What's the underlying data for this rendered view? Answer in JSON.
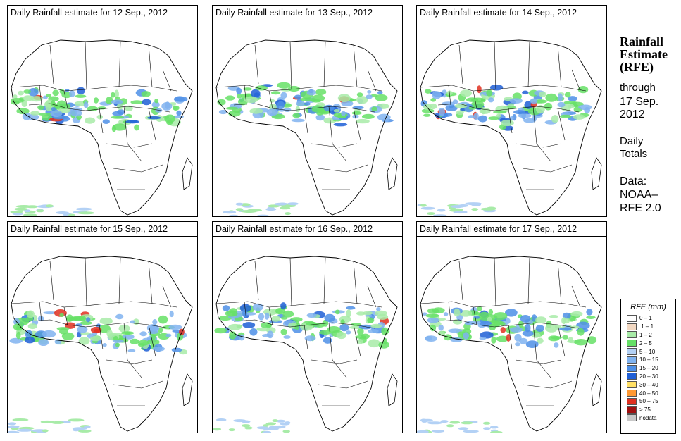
{
  "panels": [
    {
      "title": "Daily Rainfall estimate for  12 Sep., 2012"
    },
    {
      "title": "Daily Rainfall estimate for  13 Sep., 2012"
    },
    {
      "title": "Daily Rainfall estimate for  14 Sep., 2012"
    },
    {
      "title": "Daily Rainfall estimate for  15 Sep., 2012"
    },
    {
      "title": "Daily Rainfall estimate for  16 Sep., 2012"
    },
    {
      "title": "Daily Rainfall estimate for  17 Sep., 2012"
    }
  ],
  "side": {
    "title_1": "Rainfall",
    "title_2": "Estimate",
    "title_3": "(RFE)",
    "through": "through",
    "end_date_1": "17 Sep.",
    "end_date_2": "2012",
    "totals_1": "Daily",
    "totals_2": "Totals",
    "data_1": "Data:",
    "data_2": "NOAA–",
    "data_3": "RFE 2.0"
  },
  "legend": {
    "title": "RFE (mm)",
    "items": [
      {
        "label": "0 – 1",
        "color": "#ffffff"
      },
      {
        "label": ".1 – 1",
        "color": "#f2d8c2"
      },
      {
        "label": "1 – 2",
        "color": "#a8eba8"
      },
      {
        "label": "2 – 5",
        "color": "#66e066"
      },
      {
        "label": "5 – 10",
        "color": "#b3d1f5"
      },
      {
        "label": "10 – 15",
        "color": "#80b3f0"
      },
      {
        "label": "15 – 20",
        "color": "#4d8fe6"
      },
      {
        "label": "20 – 30",
        "color": "#1f5fd6"
      },
      {
        "label": "30 – 40",
        "color": "#ffe066"
      },
      {
        "label": "40 – 50",
        "color": "#ff9933"
      },
      {
        "label": "50 – 75",
        "color": "#e03020"
      },
      {
        "label": "> 75",
        "color": "#a01010"
      },
      {
        "label": "nodata",
        "color": "#c8c8c8"
      }
    ]
  }
}
